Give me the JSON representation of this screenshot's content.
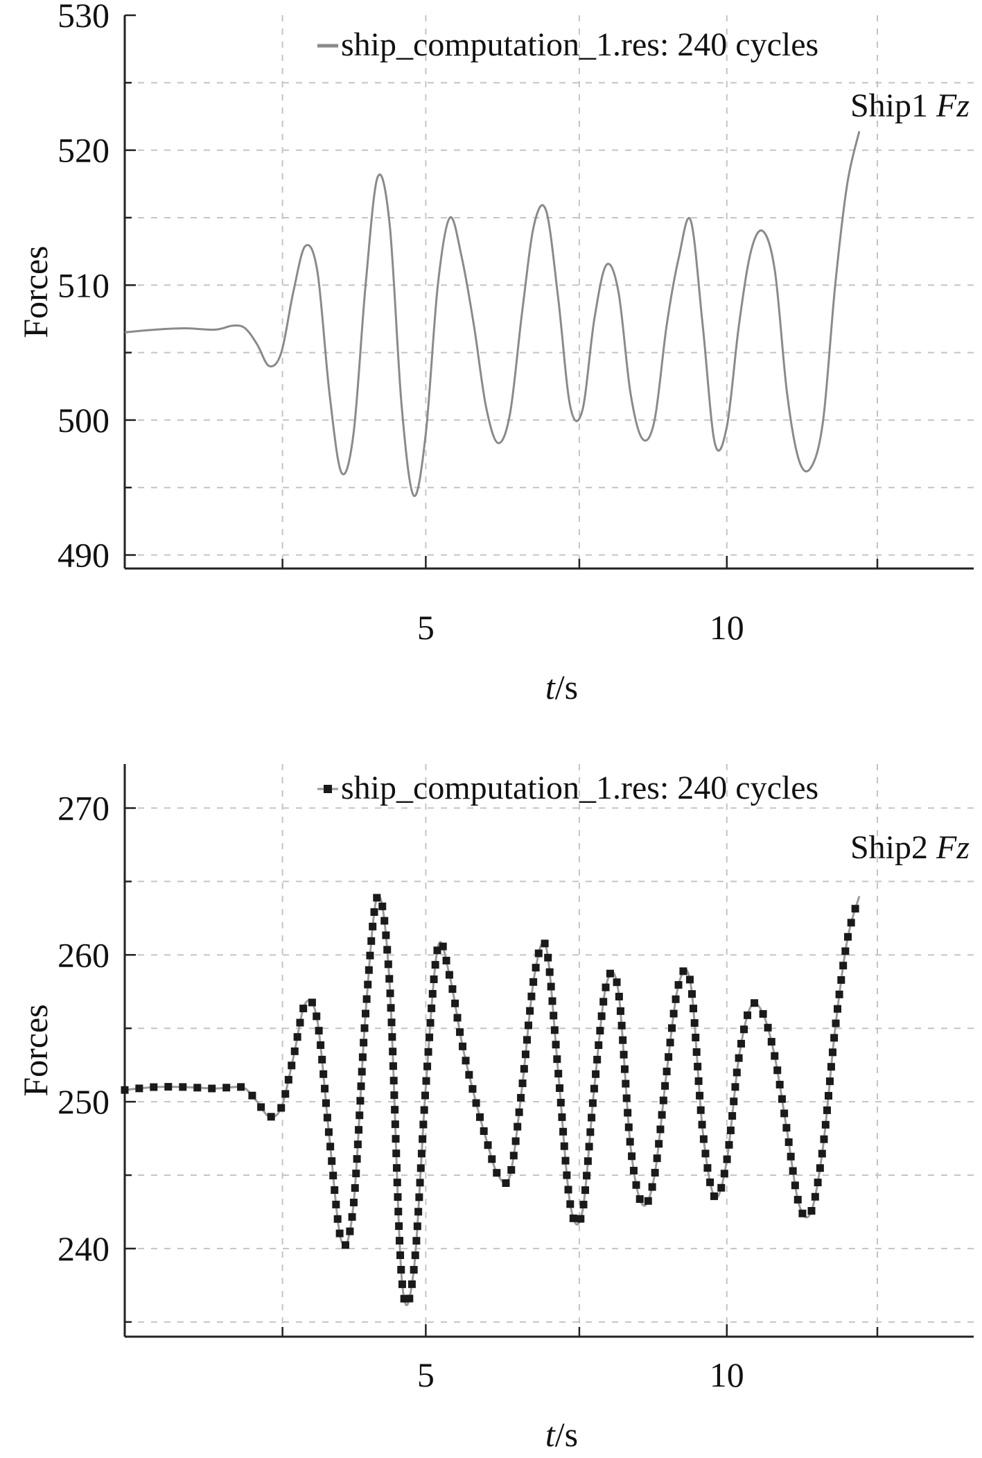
{
  "chart_data": [
    {
      "type": "line",
      "title": "",
      "xlabel": {
        "italic": "t",
        "rest": "/s"
      },
      "ylabel": "Forces",
      "annotation": {
        "prefix": "Ship1 ",
        "italic": "Fz"
      },
      "xlim": [
        0,
        14.1
      ],
      "ylim": [
        489,
        530
      ],
      "xticks": [
        5,
        10
      ],
      "xgrid": [
        2.62,
        7.55,
        12.5
      ],
      "yticks": [
        490,
        500,
        510,
        520,
        530
      ],
      "yminor": [
        495,
        505,
        515,
        525
      ],
      "grid": true,
      "legend": {
        "placement": "top-right"
      },
      "series": [
        {
          "name": "ship_computation_1.res: 240 cycles",
          "color": "#8a8a8a",
          "markers": false,
          "x": [
            0.0,
            0.5,
            1.0,
            1.5,
            1.8,
            2.0,
            2.2,
            2.4,
            2.6,
            2.8,
            3.0,
            3.2,
            3.4,
            3.6,
            3.8,
            4.0,
            4.2,
            4.4,
            4.6,
            4.8,
            5.0,
            5.2,
            5.4,
            5.6,
            5.8,
            6.0,
            6.2,
            6.4,
            6.6,
            6.8,
            7.0,
            7.2,
            7.4,
            7.6,
            7.8,
            8.0,
            8.2,
            8.4,
            8.6,
            8.8,
            9.0,
            9.2,
            9.4,
            9.6,
            9.8,
            10.0,
            10.2,
            10.4,
            10.6,
            10.8,
            11.0,
            11.2,
            11.4,
            11.6,
            11.8,
            12.0,
            12.2
          ],
          "y": [
            506.5,
            506.7,
            506.8,
            506.7,
            507.0,
            506.8,
            505.6,
            504.0,
            505.0,
            509.5,
            512.9,
            511.0,
            502.0,
            496.1,
            499.0,
            510.0,
            518.0,
            514.5,
            501.0,
            494.4,
            499.0,
            510.0,
            515.0,
            512.0,
            507.0,
            501.0,
            498.3,
            500.5,
            508.0,
            514.5,
            515.5,
            509.0,
            501.0,
            500.7,
            507.5,
            511.5,
            509.5,
            502.0,
            498.6,
            500.0,
            507.0,
            512.0,
            514.8,
            507.0,
            498.3,
            499.5,
            507.0,
            512.5,
            514.0,
            511.0,
            502.0,
            497.0,
            496.5,
            500.0,
            510.0,
            517.5,
            521.4
          ]
        }
      ]
    },
    {
      "type": "line",
      "title": "",
      "xlabel": {
        "italic": "t",
        "rest": "/s"
      },
      "ylabel": "Forces",
      "annotation": {
        "prefix": "Ship2 ",
        "italic": "Fz"
      },
      "xlim": [
        0,
        14.1
      ],
      "ylim": [
        234,
        273
      ],
      "xticks": [
        5,
        10
      ],
      "xgrid": [
        2.62,
        7.55,
        12.5
      ],
      "yticks": [
        240,
        250,
        260,
        270
      ],
      "yminor": [
        235,
        245,
        255,
        265
      ],
      "grid": true,
      "legend": {
        "placement": "top-right"
      },
      "series": [
        {
          "name": "ship_computation_1.res: 240 cycles",
          "color": "#1a1a1a",
          "line_color": "#9a9a9a",
          "markers": true,
          "x": [
            0.0,
            0.5,
            1.0,
            1.5,
            1.8,
            2.0,
            2.2,
            2.4,
            2.6,
            2.8,
            3.0,
            3.2,
            3.4,
            3.6,
            3.8,
            4.0,
            4.2,
            4.4,
            4.6,
            4.8,
            5.0,
            5.2,
            5.4,
            5.6,
            5.8,
            6.0,
            6.2,
            6.4,
            6.6,
            6.8,
            7.0,
            7.2,
            7.4,
            7.6,
            7.8,
            8.0,
            8.2,
            8.4,
            8.6,
            8.8,
            9.0,
            9.2,
            9.4,
            9.6,
            9.8,
            10.0,
            10.2,
            10.4,
            10.6,
            10.8,
            11.0,
            11.2,
            11.4,
            11.6,
            11.8,
            12.0,
            12.2
          ],
          "y": [
            250.8,
            251.0,
            251.0,
            250.9,
            251.0,
            250.9,
            250.0,
            249.0,
            249.6,
            253.0,
            256.7,
            255.5,
            247.5,
            240.5,
            243.0,
            256.0,
            264.0,
            258.0,
            238.0,
            238.5,
            251.0,
            260.5,
            258.5,
            254.0,
            250.5,
            247.5,
            245.0,
            245.0,
            251.0,
            258.5,
            260.5,
            252.0,
            243.0,
            242.5,
            251.0,
            258.0,
            257.5,
            247.0,
            243.0,
            245.0,
            252.0,
            258.0,
            258.0,
            248.0,
            243.5,
            246.0,
            253.0,
            256.5,
            256.0,
            253.0,
            248.0,
            243.0,
            242.5,
            247.0,
            255.0,
            261.0,
            264.0
          ]
        }
      ]
    }
  ]
}
